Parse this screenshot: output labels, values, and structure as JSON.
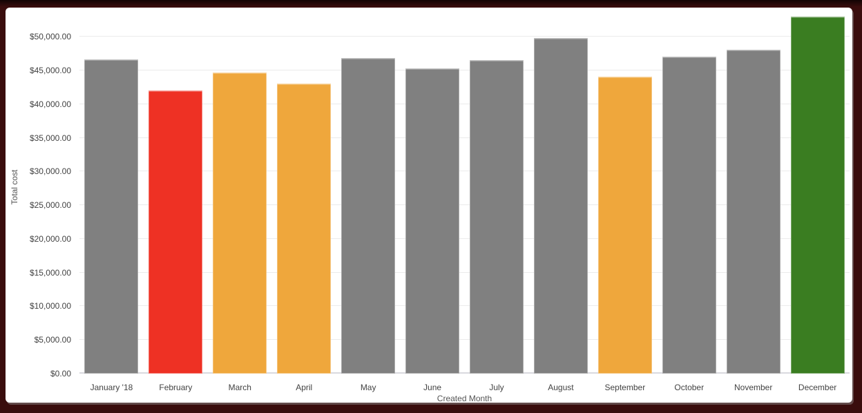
{
  "frame": {
    "border_color": "#2d0909"
  },
  "chart_data": {
    "type": "bar",
    "title": "",
    "xlabel": "Created Month",
    "ylabel": "Total cost",
    "categories": [
      "January '18",
      "February",
      "March",
      "April",
      "May",
      "June",
      "July",
      "August",
      "September",
      "October",
      "November",
      "December"
    ],
    "values": [
      46600,
      42000,
      44700,
      43100,
      46900,
      45300,
      46500,
      49800,
      44100,
      47100,
      48100,
      53000
    ],
    "bar_colors": [
      "#808080",
      "#ee3124",
      "#efa73c",
      "#efa73c",
      "#808080",
      "#808080",
      "#808080",
      "#808080",
      "#efa73c",
      "#808080",
      "#808080",
      "#3a7d21"
    ],
    "y_ticks": [
      {
        "value": 0,
        "label": "$0.00"
      },
      {
        "value": 5000,
        "label": "$5,000.00"
      },
      {
        "value": 10000,
        "label": "$10,000.00"
      },
      {
        "value": 15000,
        "label": "$15,000.00"
      },
      {
        "value": 20000,
        "label": "$20,000.00"
      },
      {
        "value": 25000,
        "label": "$25,000.00"
      },
      {
        "value": 30000,
        "label": "$30,000.00"
      },
      {
        "value": 35000,
        "label": "$35,000.00"
      },
      {
        "value": 40000,
        "label": "$40,000.00"
      },
      {
        "value": 45000,
        "label": "$45,000.00"
      },
      {
        "value": 50000,
        "label": "$50,000.00"
      }
    ],
    "ylim": [
      0,
      53000
    ],
    "grid": true,
    "legend": "none",
    "colors": {
      "default_bar": "#808080",
      "alert_bar": "#ee3124",
      "warning_bar": "#efa73c",
      "good_bar": "#3a7d21",
      "gridline": "#ebebeb",
      "baseline": "#d9d9de",
      "axis_text": "#424242",
      "background": "#ffffff"
    }
  }
}
